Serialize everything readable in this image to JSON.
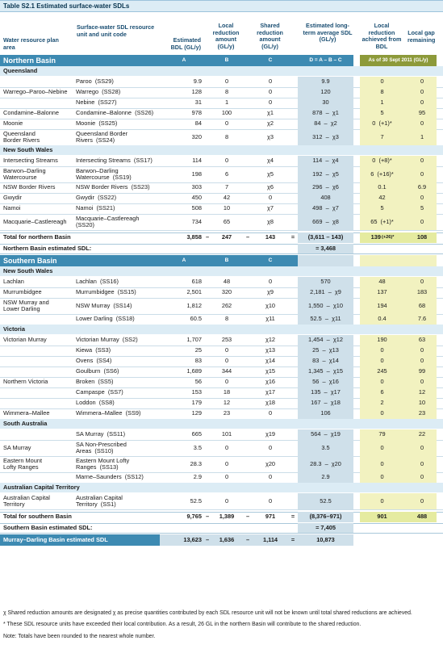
{
  "title": "Table S2.1  Estimated surface-water SDLs",
  "headers": {
    "area": "Water resource plan area",
    "unit": "Surface-water SDL resource unit and unit code",
    "bdl": "Estimated BDL (GL/y)",
    "local": "Local reduction amount (GL/y)",
    "shared": "Shared reduction amount (GL/y)",
    "sdl": "Estimated long-term average SDL (GL/y)",
    "achieved": "Local reduction achieved from BDL",
    "gap": "Local gap remaining"
  },
  "northern": {
    "band": "Northern Basin",
    "letters": [
      "A",
      "B",
      "C",
      "D = A – B – C",
      "As of 30 Sept 2011 (GL/y)"
    ],
    "states": [
      {
        "name": "Queensland",
        "rows": [
          {
            "area": "",
            "unit": "Paroo  (SS29)",
            "a": "9.9",
            "b": "0",
            "c": "0",
            "d": "9.9",
            "e": "0",
            "f": "0"
          },
          {
            "area": "Warrego–Paroo–Nebine",
            "unit": "Warrego  (SS28)",
            "a": "128",
            "b": "8",
            "c": "0",
            "d": "120",
            "e": "8",
            "f": "0"
          },
          {
            "area": "",
            "unit": "Nebine  (SS27)",
            "a": "31",
            "b": "1",
            "c": "0",
            "d": "30",
            "e": "1",
            "f": "0"
          },
          {
            "area": "Condamine–Balonne",
            "unit": "Condamine–Balonne  (SS26)",
            "a": "978",
            "b": "100",
            "c": "χ1",
            "d": "878  –  χ1",
            "e": "5",
            "f": "95"
          },
          {
            "area": "Moonie",
            "unit": "Moonie  (SS25)",
            "a": "84",
            "b": "0",
            "c": "χ2",
            "d": "84  –  χ2",
            "e": "0  (+1)*",
            "f": "0"
          },
          {
            "area": "Queensland\nBorder Rivers",
            "unit": "Queensland Border\nRivers  (SS24)",
            "a": "320",
            "b": "8",
            "c": "χ3",
            "d": "312  –  χ3",
            "e": "7",
            "f": "1"
          }
        ]
      },
      {
        "name": "New South Wales",
        "rows": [
          {
            "area": "Intersecting Streams",
            "unit": "Intersecting Streams  (SS17)",
            "a": "114",
            "b": "0",
            "c": "χ4",
            "d": "114  –  χ4",
            "e": "0  (+8)*",
            "f": "0"
          },
          {
            "area": "Barwon–Darling\nWatercourse",
            "unit": "Barwon–Darling\nWatercourse  (SS19)",
            "a": "198",
            "b": "6",
            "c": "χ5",
            "d": "192  –  χ5",
            "e": "6  (+16)*",
            "f": "0"
          },
          {
            "area": "NSW Border Rivers",
            "unit": "NSW Border Rivers  (SS23)",
            "a": "303",
            "b": "7",
            "c": "χ6",
            "d": "296  –  χ6",
            "e": "0.1",
            "f": "6.9"
          },
          {
            "area": "Gwydir",
            "unit": "Gwydir  (SS22)",
            "a": "450",
            "b": "42",
            "c": "0",
            "d": "408",
            "e": "42",
            "f": "0"
          },
          {
            "area": "Namoi",
            "unit": "Namoi  (SS21)",
            "a": "508",
            "b": "10",
            "c": "χ7",
            "d": "498  –  χ7",
            "e": "5",
            "f": "5"
          },
          {
            "area": "Macquarie–Castlereagh",
            "unit": "Macquarie–Castlereagh\n(SS20)",
            "a": "734",
            "b": "65",
            "c": "χ8",
            "d": "669  –  χ8",
            "e": "65  (+1)*",
            "f": "0"
          }
        ]
      }
    ],
    "total": {
      "label": "Total for northern Basin",
      "a": "3,858",
      "b": "247",
      "c": "143",
      "d": "(3,611 – 143)",
      "e": "139",
      "e_note": "(+26)*",
      "f": "108"
    },
    "estimated": {
      "label": "Northern Basin estimated SDL:",
      "value": "= 3,468"
    }
  },
  "southern": {
    "band": "Southern Basin",
    "letters": [
      "A",
      "B",
      "C",
      "D = A – B – C"
    ],
    "states": [
      {
        "name": "New South Wales",
        "rows": [
          {
            "area": "Lachlan",
            "unit": "Lachlan  (SS16)",
            "a": "618",
            "b": "48",
            "c": "0",
            "d": "570",
            "e": "48",
            "f": "0"
          },
          {
            "area": "Murrumbidgee",
            "unit": "Murrumbidgee  (SS15)",
            "a": "2,501",
            "b": "320",
            "c": "χ9",
            "d": "2,181  –  χ9",
            "e": "137",
            "f": "183"
          },
          {
            "area": "NSW Murray and\nLower Darling",
            "unit": "NSW Murray  (SS14)",
            "a": "1,812",
            "b": "262",
            "c": "χ10",
            "d": "1,550  –  χ10",
            "e": "194",
            "f": "68"
          },
          {
            "area": "",
            "unit": "Lower Darling  (SS18)",
            "a": "60.5",
            "b": "8",
            "c": "χ11",
            "d": "52.5  –  χ11",
            "e": "0.4",
            "f": "7.6"
          }
        ]
      },
      {
        "name": "Victoria",
        "rows": [
          {
            "area": "Victorian Murray",
            "unit": "Victorian Murray  (SS2)",
            "a": "1,707",
            "b": "253",
            "c": "χ12",
            "d": "1,454  –  χ12",
            "e": "190",
            "f": "63"
          },
          {
            "area": "",
            "unit": "Kiewa  (SS3)",
            "a": "25",
            "b": "0",
            "c": "χ13",
            "d": "25  –  χ13",
            "e": "0",
            "f": "0"
          },
          {
            "area": "",
            "unit": "Ovens  (SS4)",
            "a": "83",
            "b": "0",
            "c": "χ14",
            "d": "83  –  χ14",
            "e": "0",
            "f": "0"
          },
          {
            "area": "",
            "unit": "Goulburn  (SS6)",
            "a": "1,689",
            "b": "344",
            "c": "χ15",
            "d": "1,345  –  χ15",
            "e": "245",
            "f": "99"
          },
          {
            "area": "Northern Victoria",
            "unit": "Broken  (SS5)",
            "a": "56",
            "b": "0",
            "c": "χ16",
            "d": "56  –  χ16",
            "e": "0",
            "f": "0"
          },
          {
            "area": "",
            "unit": "Campaspe  (SS7)",
            "a": "153",
            "b": "18",
            "c": "χ17",
            "d": "135  –  χ17",
            "e": "6",
            "f": "12"
          },
          {
            "area": "",
            "unit": "Loddon  (SS8)",
            "a": "179",
            "b": "12",
            "c": "χ18",
            "d": "167  –  χ18",
            "e": "2",
            "f": "10"
          },
          {
            "area": "Wimmera–Mallee",
            "unit": "Wimmera–Mallee  (SS9)",
            "a": "129",
            "b": "23",
            "c": "0",
            "d": "106",
            "e": "0",
            "f": "23"
          }
        ]
      },
      {
        "name": "South Australia",
        "rows": [
          {
            "area": "",
            "unit": "SA Murray  (SS11)",
            "a": "665",
            "b": "101",
            "c": "χ19",
            "d": "564  –  χ19",
            "e": "79",
            "f": "22"
          },
          {
            "area": "SA Murray",
            "unit": "SA Non-Prescribed\nAreas  (SS10)",
            "a": "3.5",
            "b": "0",
            "c": "0",
            "d": "3.5",
            "e": "0",
            "f": "0"
          },
          {
            "area": "Eastern Mount\nLofty Ranges",
            "unit": "Eastern Mount Lofty\nRanges  (SS13)",
            "a": "28.3",
            "b": "0",
            "c": "χ20",
            "d": "28.3  –  χ20",
            "e": "0",
            "f": "0"
          },
          {
            "area": "",
            "unit": "Marne–Saunders  (SS12)",
            "a": "2.9",
            "b": "0",
            "c": "0",
            "d": "2.9",
            "e": "0",
            "f": "0"
          }
        ]
      },
      {
        "name": "Australian Capital Territory",
        "rows": [
          {
            "area": "Australian Capital\nTerritory",
            "unit": "Australian Capital\nTerritory  (SS1)",
            "a": "52.5",
            "b": "0",
            "c": "0",
            "d": "52.5",
            "e": "0",
            "f": "0"
          }
        ]
      }
    ],
    "total": {
      "label": "Total for southern Basin",
      "a": "9,765",
      "b": "1,389",
      "c": "971",
      "d": "(8,376–971)",
      "e": "901",
      "f": "488"
    },
    "estimated": {
      "label": "Southern Basin estimated SDL:",
      "value": "= 7,405"
    }
  },
  "basin": {
    "label": "Murray–Darling Basin estimated SDL",
    "a": "13,623",
    "b": "1,636",
    "c": "1,114",
    "d": "10,873"
  },
  "operators": {
    "minus": "–",
    "equals": "="
  },
  "footnotes": [
    "χ  Shared reduction amounts are designated χ as precise quantities contributed by each SDL resource unit will not be known until total shared reductions are achieved.",
    "*  These SDL resource units have exceeded their local contribution. As a result, 26 GL in the northern Basin will contribute to the shared reduction.",
    "Note: Totals have been rounded to the nearest whole number."
  ],
  "colors": {
    "dark_band": "#3d8ab2",
    "light_band": "#dcecf5",
    "olive": "#8d9a3a",
    "yellow": "#f2f2c0",
    "blue_shade": "#cfe0ea"
  }
}
